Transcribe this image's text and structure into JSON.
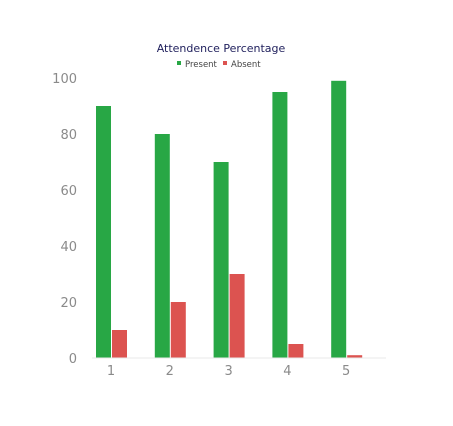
{
  "chart_data": {
    "type": "bar",
    "title": "Attendence Percentage",
    "xlabel": "",
    "ylabel": "",
    "categories": [
      "1",
      "2",
      "3",
      "4",
      "5"
    ],
    "series": [
      {
        "name": "Present",
        "color": "#28a745",
        "values": [
          90,
          80,
          70,
          95,
          99
        ]
      },
      {
        "name": "Absent",
        "color": "#dc5350",
        "values": [
          10,
          20,
          30,
          5,
          1
        ]
      }
    ],
    "ylim": [
      0,
      100
    ],
    "yticks": [
      "0",
      "20",
      "40",
      "60",
      "80",
      "100"
    ],
    "grid": false,
    "legend_position": "top-center"
  }
}
